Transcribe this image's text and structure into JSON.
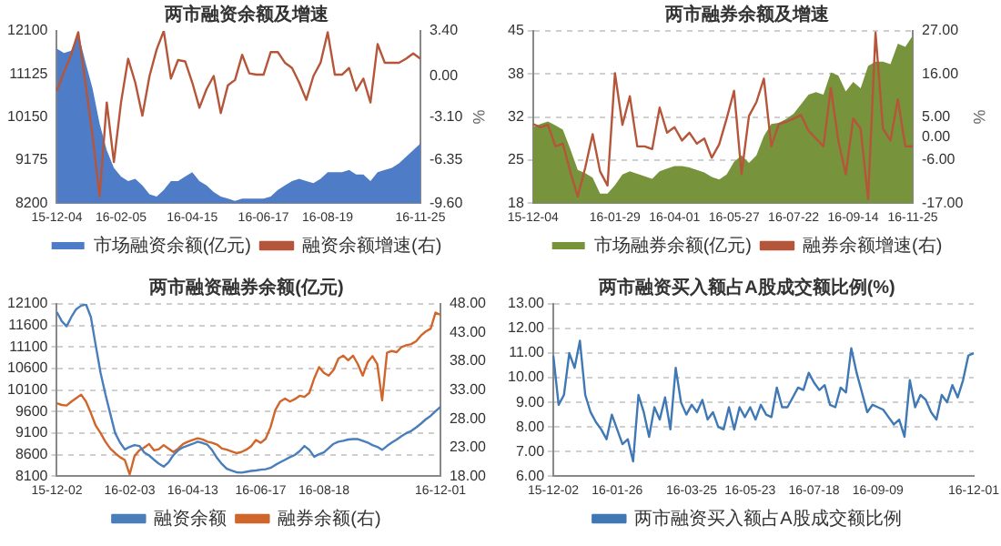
{
  "chart_data": [
    {
      "type": "area",
      "title": "两市融资余额及增速",
      "y2label": "%",
      "legend": "bottom",
      "grid": false,
      "marker": "none",
      "categories": [
        "15-12-04",
        null,
        null,
        null,
        null,
        null,
        null,
        null,
        null,
        "16-02-05",
        null,
        null,
        null,
        null,
        null,
        null,
        null,
        null,
        null,
        "16-04-15",
        null,
        null,
        null,
        null,
        null,
        null,
        null,
        null,
        null,
        "16-06-17",
        null,
        null,
        null,
        null,
        null,
        null,
        null,
        null,
        "16-08-19",
        null,
        null,
        null,
        null,
        null,
        null,
        null,
        null,
        null,
        null,
        null,
        null,
        "16-11-25"
      ],
      "ylim": [
        8200,
        12100
      ],
      "yticks": [
        8200,
        9175,
        10150,
        11125,
        12100
      ],
      "y2lim": [
        -9.6,
        3.4
      ],
      "y2ticks": [
        {
          "value": -9.6,
          "label": "-9.60"
        },
        {
          "value": -6.35,
          "label": "-6.35"
        },
        {
          "value": -3.1,
          "label": "-3.10"
        },
        {
          "value": 0,
          "label": "0.00"
        },
        {
          "value": 3.4,
          "label": "3.40"
        }
      ],
      "series": [
        {
          "name": "市场融资余额(亿元)",
          "color": "#4f7cc7",
          "values": [
            11700,
            11600,
            11650,
            12050,
            11400,
            10800,
            10000,
            9400,
            9000,
            8800,
            8700,
            8750,
            8600,
            8400,
            8350,
            8500,
            8700,
            8700,
            8800,
            8900,
            8700,
            8600,
            8450,
            8350,
            8300,
            8250,
            8300,
            8300,
            8300,
            8300,
            8350,
            8500,
            8600,
            8700,
            8750,
            8700,
            8650,
            8750,
            8900,
            8900,
            8900,
            8950,
            8850,
            8850,
            8700,
            8900,
            8950,
            9000,
            9100,
            9250,
            9400,
            9550
          ]
        },
        {
          "name": "融资余额增速(右)",
          "type": "line",
          "axis": "y2",
          "color": "#b5563a",
          "values": [
            -1.1,
            0.3,
            1.6,
            3.3,
            -0.5,
            -4.5,
            -9.1,
            -2.0,
            -6.5,
            -2.0,
            1.3,
            -0.5,
            -3.0,
            0.0,
            2.0,
            3.4,
            -0.2,
            1.2,
            1.1,
            -0.5,
            -2.4,
            -1.0,
            0.0,
            -2.8,
            -0.7,
            -0.3,
            1.6,
            0.2,
            0.1,
            0.1,
            1.8,
            1.8,
            1.0,
            0.6,
            -0.5,
            -1.8,
            0.0,
            1.0,
            3.3,
            0.1,
            0.1,
            0.6,
            -1.1,
            -0.2,
            -2.0,
            2.4,
            1.0,
            1.0,
            1.0,
            1.3,
            1.7,
            1.3
          ]
        }
      ]
    },
    {
      "type": "area",
      "title": "两市融券余额及增速",
      "y2label": "%",
      "legend": "bottom",
      "grid": "y",
      "marker": "none",
      "categories": [
        "15-12-04",
        null,
        null,
        null,
        null,
        null,
        null,
        null,
        null,
        null,
        null,
        "16-01-29",
        null,
        null,
        null,
        null,
        null,
        null,
        null,
        "16-04-01",
        null,
        null,
        null,
        null,
        null,
        null,
        null,
        "16-05-27",
        null,
        null,
        null,
        null,
        null,
        null,
        null,
        "16-07-22",
        null,
        null,
        null,
        null,
        null,
        null,
        null,
        "16-09-14",
        null,
        null,
        null,
        null,
        null,
        null,
        null,
        "16-11-25"
      ],
      "ylim": [
        18,
        45
      ],
      "yticks": [
        18,
        {
          "value": 24.75,
          "label": "25"
        },
        {
          "value": 31.5,
          "label": "32"
        },
        {
          "value": 38.25,
          "label": "38"
        },
        45
      ],
      "y2lim": [
        -17,
        27
      ],
      "y2ticks": [
        {
          "value": -17,
          "label": "-17.00"
        },
        {
          "value": -6,
          "label": "-6.00"
        },
        {
          "value": 0,
          "label": "0.00"
        },
        {
          "value": 5,
          "label": "5.00"
        },
        {
          "value": 16,
          "label": "16.00"
        },
        {
          "value": 27,
          "label": "27.00"
        }
      ],
      "series": [
        {
          "name": "市场融券余额(亿元)",
          "color": "#77933c",
          "values": [
            29.9,
            30.4,
            30.8,
            30.2,
            29.5,
            26.5,
            23.2,
            22.7,
            22.0,
            19.5,
            19.5,
            20.8,
            22.5,
            23.0,
            22.6,
            22.2,
            21.8,
            23.0,
            23.4,
            23.8,
            23.8,
            23.6,
            23.2,
            22.8,
            22.1,
            21.7,
            22.5,
            24.5,
            25.5,
            24.3,
            25.5,
            28.5,
            30.4,
            30.6,
            31.2,
            32.0,
            33.5,
            35.0,
            35.4,
            35.0,
            38.5,
            38.0,
            35.5,
            37.0,
            36.0,
            39.5,
            40.2,
            40.2,
            39.8,
            43.0,
            42.5,
            44.3
          ]
        },
        {
          "name": "融券余额增速(右)",
          "type": "line",
          "axis": "y2",
          "color": "#b5563a",
          "values": [
            3.2,
            2.4,
            3.0,
            -2.5,
            -1.8,
            -9.0,
            -15.3,
            -8.0,
            0.6,
            -8.9,
            -12.5,
            16.2,
            3.0,
            10.3,
            -2.5,
            -2.5,
            -3.2,
            7.4,
            1.0,
            2.4,
            -1.0,
            1.0,
            -1.8,
            -0.5,
            -5.4,
            -2.0,
            4.6,
            11.7,
            -9.6,
            5.3,
            8.8,
            14.8,
            -2.5,
            3.2,
            3.8,
            4.6,
            5.5,
            1.5,
            -0.5,
            -2.5,
            12.4,
            -1.0,
            -9.6,
            4.6,
            2.0,
            -16.0,
            26.6,
            2.0,
            -1.0,
            9.5,
            -2.5,
            -2.5
          ]
        }
      ]
    },
    {
      "type": "line",
      "title": "两市融资融券余额(亿元)",
      "legend": "bottom",
      "grid": "y",
      "marker": "none",
      "categories": [
        "15-12-02",
        null,
        null,
        null,
        null,
        null,
        null,
        null,
        null,
        null,
        null,
        null,
        null,
        null,
        null,
        "16-02-03",
        null,
        null,
        null,
        null,
        null,
        null,
        null,
        null,
        null,
        null,
        null,
        null,
        "16-04-13",
        null,
        null,
        null,
        null,
        null,
        null,
        null,
        null,
        null,
        null,
        null,
        null,
        null,
        "16-06-17",
        null,
        null,
        null,
        null,
        null,
        null,
        null,
        null,
        null,
        null,
        null,
        null,
        "16-08-18",
        null,
        null,
        null,
        null,
        null,
        null,
        null,
        null,
        null,
        null,
        null,
        null,
        null,
        null,
        null,
        null,
        null,
        null,
        null,
        null,
        null,
        null,
        null,
        "16-12-01"
      ],
      "ylim": [
        8100,
        12100
      ],
      "yticks": [
        8100,
        8600,
        9100,
        9600,
        10100,
        10600,
        11100,
        11600,
        12100
      ],
      "y2lim": [
        18,
        48
      ],
      "y2ticks": [
        {
          "value": 18,
          "label": "18.00"
        },
        {
          "value": 23,
          "label": "23.00"
        },
        {
          "value": 28,
          "label": "28.00"
        },
        {
          "value": 33,
          "label": "33.00"
        },
        {
          "value": 38,
          "label": "38.00"
        },
        {
          "value": 43,
          "label": "43.00"
        },
        {
          "value": 48,
          "label": "48.00"
        }
      ],
      "series": [
        {
          "name": "融资余额",
          "color": "#4a7ebb",
          "values": [
            11910,
            11700,
            11580,
            11800,
            11980,
            12060,
            12090,
            11800,
            11140,
            10500,
            10000,
            9550,
            9100,
            8880,
            8720,
            8780,
            8820,
            8800,
            8650,
            8580,
            8480,
            8390,
            8320,
            8420,
            8590,
            8700,
            8770,
            8810,
            8850,
            8900,
            8870,
            8830,
            8700,
            8520,
            8380,
            8270,
            8230,
            8190,
            8180,
            8200,
            8220,
            8230,
            8250,
            8260,
            8290,
            8360,
            8420,
            8480,
            8540,
            8590,
            8680,
            8800,
            8710,
            8550,
            8610,
            8650,
            8750,
            8850,
            8900,
            8920,
            8950,
            8960,
            8960,
            8920,
            8880,
            8820,
            8780,
            8710,
            8800,
            8880,
            8950,
            9030,
            9100,
            9150,
            9230,
            9320,
            9420,
            9500,
            9610,
            9710
          ]
        },
        {
          "name": "融券余额(右)",
          "axis": "y2",
          "color": "#d0662c",
          "values": [
            30.7,
            30.4,
            30.3,
            31.0,
            31.6,
            32.2,
            31.0,
            29.0,
            26.8,
            25.5,
            24.0,
            22.8,
            22.0,
            21.3,
            20.8,
            18.3,
            21.5,
            22.5,
            23.0,
            23.6,
            22.5,
            22.7,
            23.4,
            22.8,
            22.2,
            22.8,
            23.6,
            24.0,
            24.3,
            24.6,
            24.4,
            24.0,
            23.8,
            23.5,
            22.8,
            22.6,
            22.3,
            22.0,
            22.2,
            22.6,
            23.2,
            24.3,
            23.8,
            24.5,
            26.5,
            29.5,
            31.0,
            31.5,
            31.0,
            31.4,
            32.0,
            31.8,
            32.5,
            35.0,
            37.0,
            36.0,
            35.5,
            36.5,
            38.5,
            39.0,
            38.2,
            39.0,
            37.5,
            35.5,
            37.8,
            38.9,
            37.5,
            31.2,
            39.5,
            39.8,
            39.6,
            40.5,
            40.8,
            41.0,
            41.5,
            42.5,
            43.2,
            43.7,
            46.5,
            46.1
          ]
        }
      ]
    },
    {
      "type": "line",
      "title": "两市融资买入额占A股成交额比例(%)",
      "legend": "bottom",
      "grid": "y",
      "marker": "none",
      "categories": [
        "15-12-02",
        null,
        null,
        null,
        null,
        null,
        null,
        null,
        null,
        null,
        null,
        null,
        "16-01-26",
        null,
        null,
        null,
        null,
        null,
        null,
        null,
        null,
        null,
        null,
        null,
        null,
        null,
        "16-03-25",
        null,
        null,
        null,
        null,
        null,
        null,
        null,
        null,
        null,
        null,
        "16-05-23",
        null,
        null,
        null,
        null,
        null,
        null,
        null,
        null,
        null,
        null,
        null,
        "16-07-18",
        null,
        null,
        null,
        null,
        null,
        null,
        null,
        null,
        null,
        null,
        null,
        "16-09-09",
        null,
        null,
        null,
        null,
        null,
        null,
        null,
        null,
        null,
        null,
        null,
        null,
        null,
        null,
        null,
        null,
        null,
        "16-12-01"
      ],
      "ylim": [
        6,
        13
      ],
      "yticks": [
        {
          "value": 6,
          "label": "6.00"
        },
        {
          "value": 7,
          "label": "7.00"
        },
        {
          "value": 8,
          "label": "8.00"
        },
        {
          "value": 9,
          "label": "9.00"
        },
        {
          "value": 10,
          "label": "10.00"
        },
        {
          "value": 11,
          "label": "11.00"
        },
        {
          "value": 12,
          "label": "12.00"
        },
        {
          "value": 13,
          "label": "13.00"
        }
      ],
      "series": [
        {
          "name": "两市融资买入额占A股成交额比例",
          "color": "#3f78b5",
          "values": [
            10.9,
            8.9,
            9.3,
            11.0,
            10.4,
            11.5,
            9.3,
            8.6,
            8.2,
            7.9,
            7.5,
            8.5,
            7.9,
            7.3,
            7.5,
            6.6,
            9.3,
            8.6,
            7.6,
            8.8,
            8.3,
            9.2,
            7.9,
            10.4,
            9.0,
            8.5,
            8.9,
            8.6,
            9.1,
            8.3,
            8.6,
            8.0,
            7.9,
            8.8,
            7.9,
            8.8,
            8.4,
            8.8,
            8.3,
            8.9,
            8.5,
            8.4,
            9.6,
            8.8,
            8.8,
            9.2,
            9.6,
            9.5,
            10.2,
            9.8,
            9.5,
            9.7,
            8.9,
            8.8,
            9.6,
            9.4,
            11.2,
            10.2,
            9.4,
            8.6,
            8.9,
            8.8,
            8.7,
            8.4,
            8.1,
            8.3,
            7.6,
            9.9,
            8.8,
            9.3,
            9.1,
            8.6,
            8.3,
            9.3,
            9.0,
            9.7,
            9.2,
            9.9,
            10.9,
            11.0
          ]
        }
      ]
    }
  ]
}
